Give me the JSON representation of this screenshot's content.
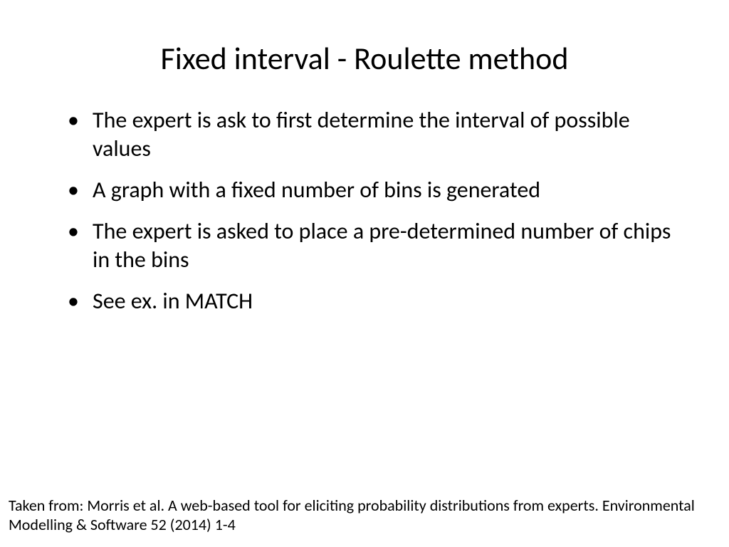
{
  "slide": {
    "title": "Fixed interval - Roulette method",
    "bullets": [
      "The expert is ask to first determine the interval of possible values",
      "A graph with a fixed number of bins is generated",
      "The expert is asked to place a pre-determined number of chips in the bins",
      "See ex. in MATCH"
    ],
    "citation": "Taken from: Morris et al. A web-based tool for eliciting probability distributions from experts. Environmental Modelling & Software 52 (2014) 1-4"
  },
  "styling": {
    "background_color": "#ffffff",
    "text_color": "#000000",
    "title_fontsize": 44,
    "bullet_fontsize": 32,
    "citation_fontsize": 22,
    "font_family": "Calibri"
  }
}
